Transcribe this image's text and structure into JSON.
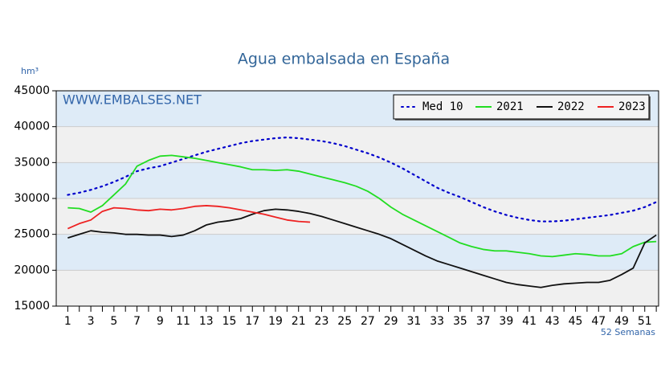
{
  "chart_data": {
    "type": "line",
    "title": "Agua embalsada en España",
    "y_unit": "hm³",
    "x_unit": "52 Semanas",
    "watermark": "WWW.EMBALSES.NET",
    "x": [
      1,
      2,
      3,
      4,
      5,
      6,
      7,
      8,
      9,
      10,
      11,
      12,
      13,
      14,
      15,
      16,
      17,
      18,
      19,
      20,
      21,
      22,
      23,
      24,
      25,
      26,
      27,
      28,
      29,
      30,
      31,
      32,
      33,
      34,
      35,
      36,
      37,
      38,
      39,
      40,
      41,
      42,
      43,
      44,
      45,
      46,
      47,
      48,
      49,
      50,
      51,
      52
    ],
    "series": [
      {
        "name": "Med 10",
        "color": "#0000cc",
        "dash": "dotted",
        "values": [
          30500,
          30800,
          31200,
          31700,
          32300,
          33000,
          33800,
          34200,
          34500,
          35000,
          35500,
          36000,
          36500,
          36900,
          37300,
          37700,
          38000,
          38200,
          38400,
          38500,
          38400,
          38200,
          38000,
          37700,
          37300,
          36800,
          36300,
          35700,
          35000,
          34200,
          33300,
          32400,
          31500,
          30800,
          30200,
          29500,
          28800,
          28200,
          27700,
          27300,
          27000,
          26800,
          26800,
          26900,
          27100,
          27300,
          27500,
          27700,
          28000,
          28300,
          28800,
          29500
        ]
      },
      {
        "name": "2021",
        "color": "#22dd22",
        "dash": "solid",
        "values": [
          28700,
          28600,
          28100,
          29000,
          30500,
          32000,
          34500,
          35300,
          35900,
          36000,
          35800,
          35600,
          35300,
          35000,
          34700,
          34400,
          34000,
          34000,
          33900,
          34000,
          33800,
          33400,
          33000,
          32600,
          32200,
          31700,
          31000,
          30000,
          28800,
          27800,
          27000,
          26200,
          25400,
          24600,
          23800,
          23300,
          22900,
          22700,
          22700,
          22500,
          22300,
          22000,
          21900,
          22100,
          22300,
          22200,
          22000,
          22000,
          22300,
          23300,
          23900,
          24000
        ]
      },
      {
        "name": "2022",
        "color": "#111111",
        "dash": "solid",
        "values": [
          24500,
          25000,
          25500,
          25300,
          25200,
          25000,
          25000,
          24900,
          24900,
          24700,
          24900,
          25500,
          26300,
          26700,
          26900,
          27200,
          27800,
          28300,
          28500,
          28400,
          28200,
          27900,
          27500,
          27000,
          26500,
          26000,
          25500,
          25000,
          24400,
          23600,
          22800,
          22000,
          21300,
          20800,
          20300,
          19800,
          19300,
          18800,
          18300,
          18000,
          17800,
          17600,
          17900,
          18100,
          18200,
          18300,
          18300,
          18600,
          19400,
          20300,
          23800,
          24900
        ]
      },
      {
        "name": "2023",
        "color": "#ee2222",
        "dash": "solid",
        "values": [
          25800,
          26500,
          27000,
          28200,
          28700,
          28600,
          28400,
          28300,
          28500,
          28400,
          28600,
          28900,
          29000,
          28900,
          28700,
          28400,
          28100,
          27800,
          27400,
          27000,
          26800,
          26700,
          null,
          null,
          null,
          null,
          null,
          null,
          null,
          null,
          null,
          null,
          null,
          null,
          null,
          null,
          null,
          null,
          null,
          null,
          null,
          null,
          null,
          null,
          null,
          null,
          null,
          null,
          null,
          null,
          null,
          null
        ]
      }
    ],
    "xlim": [
      0,
      52.2
    ],
    "xticks": [
      1,
      3,
      5,
      7,
      9,
      11,
      13,
      15,
      17,
      19,
      21,
      23,
      25,
      27,
      29,
      31,
      33,
      35,
      37,
      39,
      41,
      43,
      45,
      47,
      49,
      51
    ],
    "xminorticks": [
      2,
      4,
      6,
      8,
      10,
      12,
      14,
      16,
      18,
      20,
      22,
      24,
      26,
      28,
      30,
      32,
      34,
      36,
      38,
      40,
      42,
      44,
      46,
      48,
      50,
      52
    ],
    "ylim": [
      15000,
      45000
    ],
    "yticks": [
      15000,
      20000,
      25000,
      30000,
      35000,
      40000,
      45000
    ],
    "grid": true,
    "legend": "top-right",
    "band_colors": [
      "#f0f0f0",
      "#deebf7"
    ]
  }
}
